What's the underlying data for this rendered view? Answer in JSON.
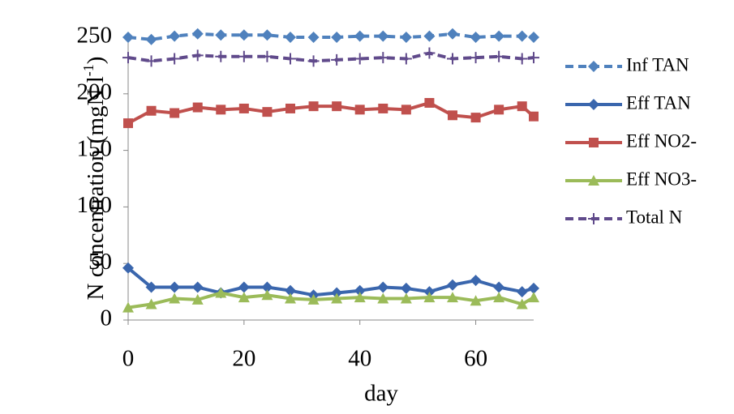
{
  "chart_data": {
    "type": "line",
    "ylabel_parts": [
      "N concentration (mgN l",
      "-1",
      ")"
    ],
    "xlabel": "day",
    "x": [
      0,
      4,
      8,
      12,
      16,
      20,
      24,
      28,
      32,
      36,
      40,
      44,
      48,
      52,
      56,
      60,
      64,
      68,
      70
    ],
    "xlim": [
      0,
      70
    ],
    "xticks": [
      0,
      20,
      40,
      60
    ],
    "ylim": [
      0,
      250
    ],
    "yticks": [
      0,
      50,
      100,
      150,
      200,
      250
    ],
    "series": [
      {
        "name": "Inf TAN",
        "color": "#4f81bd",
        "dash": true,
        "marker": "diamond",
        "values": [
          250,
          248,
          251,
          253,
          252,
          252,
          252,
          250,
          250,
          250,
          251,
          251,
          250,
          251,
          253,
          250,
          251,
          251,
          250
        ]
      },
      {
        "name": "Eff TAN",
        "color": "#3a66ad",
        "dash": false,
        "marker": "diamond",
        "values": [
          46,
          29,
          29,
          29,
          24,
          29,
          29,
          26,
          22,
          24,
          26,
          29,
          28,
          25,
          31,
          35,
          29,
          25,
          28
        ]
      },
      {
        "name": "Eff NO2-",
        "color": "#c0504d",
        "dash": false,
        "marker": "square",
        "values": [
          174,
          185,
          183,
          188,
          186,
          187,
          184,
          187,
          189,
          189,
          186,
          187,
          186,
          192,
          181,
          179,
          186,
          189,
          180
        ]
      },
      {
        "name": "Eff NO3-",
        "color": "#9bbb59",
        "dash": false,
        "marker": "triangle",
        "values": [
          11,
          14,
          19,
          18,
          24,
          20,
          22,
          19,
          18,
          19,
          20,
          19,
          19,
          20,
          20,
          17,
          20,
          14,
          20
        ]
      },
      {
        "name": "Total N",
        "color": "#604a8b",
        "dash": true,
        "marker": "plus",
        "values": [
          232,
          229,
          231,
          234,
          233,
          233,
          233,
          231,
          229,
          230,
          231,
          232,
          231,
          236,
          231,
          232,
          233,
          231,
          232
        ]
      }
    ]
  }
}
